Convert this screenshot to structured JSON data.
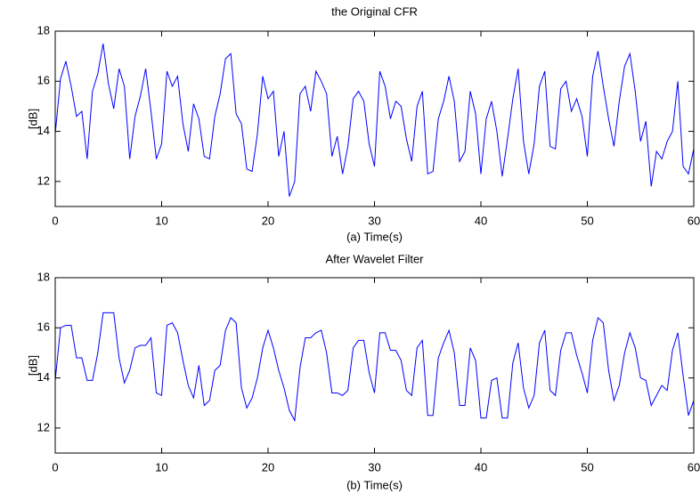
{
  "chart_data": [
    {
      "type": "line",
      "title": "the Original CFR",
      "xlabel": "(a)  Time(s)",
      "ylabel": "[dB]",
      "xlim": [
        0,
        60
      ],
      "ylim": [
        11,
        18
      ],
      "xticks": [
        0,
        10,
        20,
        30,
        40,
        50,
        60
      ],
      "yticks": [
        12,
        14,
        16,
        18
      ],
      "x": [
        0,
        0.5,
        1,
        1.5,
        2,
        2.5,
        3,
        3.5,
        4,
        4.5,
        5,
        5.5,
        6,
        6.5,
        7,
        7.5,
        8,
        8.5,
        9,
        9.5,
        10,
        10.5,
        11,
        11.5,
        12,
        12.5,
        13,
        13.5,
        14,
        14.5,
        15,
        15.5,
        16,
        16.5,
        17,
        17.5,
        18,
        18.5,
        19,
        19.5,
        20,
        20.5,
        21,
        21.5,
        22,
        22.5,
        23,
        23.5,
        24,
        24.5,
        25,
        25.5,
        26,
        26.5,
        27,
        27.5,
        28,
        28.5,
        29,
        29.5,
        30,
        30.5,
        31,
        31.5,
        32,
        32.5,
        33,
        33.5,
        34,
        34.5,
        35,
        35.5,
        36,
        36.5,
        37,
        37.5,
        38,
        38.5,
        39,
        39.5,
        40,
        40.5,
        41,
        41.5,
        42,
        42.5,
        43,
        43.5,
        44,
        44.5,
        45,
        45.5,
        46,
        46.5,
        47,
        47.5,
        48,
        48.5,
        49,
        49.5,
        50,
        50.5,
        51,
        51.5,
        52,
        52.5,
        53,
        53.5,
        54,
        54.5,
        55,
        55.5,
        56,
        56.5,
        57,
        57.5,
        58,
        58.5,
        59,
        59.5,
        60
      ],
      "series": [
        {
          "color": "#0000ff",
          "values": [
            13.9,
            16.1,
            16.8,
            15.8,
            14.6,
            14.8,
            12.9,
            15.6,
            16.3,
            17.5,
            15.9,
            14.9,
            16.5,
            15.8,
            12.9,
            14.6,
            15.4,
            16.5,
            14.8,
            12.9,
            13.5,
            16.4,
            15.8,
            16.2,
            14.3,
            13.2,
            15.1,
            14.5,
            13.0,
            12.9,
            14.6,
            15.5,
            16.9,
            17.1,
            14.7,
            14.3,
            12.5,
            12.4,
            13.9,
            16.2,
            15.3,
            15.6,
            13.0,
            14.0,
            11.4,
            12.0,
            15.5,
            15.8,
            14.8,
            16.4,
            16.0,
            15.5,
            13.0,
            13.8,
            12.3,
            13.4,
            15.3,
            15.6,
            15.2,
            13.5,
            12.6,
            16.4,
            15.8,
            14.5,
            15.2,
            15.0,
            13.7,
            12.8,
            15.0,
            15.6,
            12.3,
            12.4,
            14.5,
            15.2,
            16.2,
            15.2,
            12.8,
            13.2,
            15.6,
            14.7,
            12.3,
            14.5,
            15.2,
            14.0,
            12.2,
            13.7,
            15.3,
            16.5,
            13.6,
            12.3,
            13.5,
            15.8,
            16.4,
            13.4,
            13.3,
            15.7,
            16.0,
            14.8,
            15.3,
            14.6,
            13.0,
            16.2,
            17.2,
            15.8,
            14.5,
            13.4,
            15.2,
            16.6,
            17.1,
            15.6,
            13.6,
            14.4,
            11.8,
            13.2,
            12.9,
            13.6,
            14.0,
            16.0,
            12.6,
            12.3,
            13.3
          ]
        }
      ]
    },
    {
      "type": "line",
      "title": "After Wavelet Filter",
      "xlabel": "(b)  Time(s)",
      "ylabel": "[dB]",
      "xlim": [
        0,
        60
      ],
      "ylim": [
        11,
        18
      ],
      "xticks": [
        0,
        10,
        20,
        30,
        40,
        50,
        60
      ],
      "yticks": [
        12,
        14,
        16,
        18
      ],
      "x": [
        0,
        0.5,
        1,
        1.5,
        2,
        2.5,
        3,
        3.5,
        4,
        4.5,
        5,
        5.5,
        6,
        6.5,
        7,
        7.5,
        8,
        8.5,
        9,
        9.5,
        10,
        10.5,
        11,
        11.5,
        12,
        12.5,
        13,
        13.5,
        14,
        14.5,
        15,
        15.5,
        16,
        16.5,
        17,
        17.5,
        18,
        18.5,
        19,
        19.5,
        20,
        20.5,
        21,
        21.5,
        22,
        22.5,
        23,
        23.5,
        24,
        24.5,
        25,
        25.5,
        26,
        26.5,
        27,
        27.5,
        28,
        28.5,
        29,
        29.5,
        30,
        30.5,
        31,
        31.5,
        32,
        32.5,
        33,
        33.5,
        34,
        34.5,
        35,
        35.5,
        36,
        36.5,
        37,
        37.5,
        38,
        38.5,
        39,
        39.5,
        40,
        40.5,
        41,
        41.5,
        42,
        42.5,
        43,
        43.5,
        44,
        44.5,
        45,
        45.5,
        46,
        46.5,
        47,
        47.5,
        48,
        48.5,
        49,
        49.5,
        50,
        50.5,
        51,
        51.5,
        52,
        52.5,
        53,
        53.5,
        54,
        54.5,
        55,
        55.5,
        56,
        56.5,
        57,
        57.5,
        58,
        58.5,
        59,
        59.5,
        60
      ],
      "series": [
        {
          "color": "#0000ff",
          "values": [
            13.9,
            16.0,
            16.1,
            16.1,
            14.8,
            14.8,
            13.9,
            13.9,
            15.0,
            16.6,
            16.6,
            16.6,
            14.8,
            13.8,
            14.3,
            15.2,
            15.3,
            15.3,
            15.6,
            13.4,
            13.3,
            16.1,
            16.2,
            15.8,
            14.7,
            13.7,
            13.2,
            14.5,
            12.9,
            13.1,
            14.3,
            14.5,
            15.9,
            16.4,
            16.2,
            13.6,
            12.8,
            13.2,
            14.0,
            15.2,
            15.9,
            15.2,
            14.3,
            13.6,
            12.7,
            12.3,
            14.4,
            15.6,
            15.6,
            15.8,
            15.9,
            15.0,
            13.4,
            13.4,
            13.3,
            13.5,
            15.2,
            15.5,
            15.5,
            14.2,
            13.4,
            15.8,
            15.8,
            15.1,
            15.1,
            14.7,
            13.5,
            13.3,
            15.2,
            15.5,
            12.5,
            12.5,
            14.8,
            15.4,
            15.9,
            15.0,
            12.9,
            12.9,
            15.2,
            14.7,
            12.4,
            12.4,
            13.9,
            14.0,
            12.4,
            12.4,
            14.6,
            15.4,
            13.6,
            12.8,
            13.3,
            15.4,
            15.9,
            13.5,
            13.3,
            15.1,
            15.8,
            15.8,
            14.9,
            14.2,
            13.4,
            15.5,
            16.4,
            16.2,
            14.3,
            13.1,
            13.7,
            15.0,
            15.8,
            15.2,
            14.0,
            13.9,
            12.9,
            13.3,
            13.7,
            13.5,
            15.1,
            15.8,
            14.1,
            12.5,
            13.1
          ]
        }
      ]
    }
  ]
}
